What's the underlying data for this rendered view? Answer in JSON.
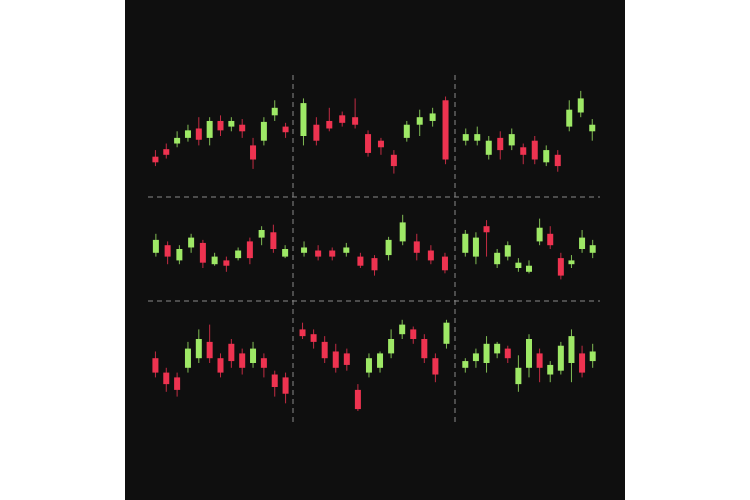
{
  "chart_data": [
    {
      "type": "candlestick",
      "up_color": "#9ee866",
      "down_color": "#ee3350",
      "ylim": [
        0,
        100
      ],
      "open": [
        28,
        36,
        42,
        48,
        58,
        48,
        66,
        60,
        62,
        40,
        45,
        72,
        60
      ],
      "close": [
        22,
        30,
        48,
        56,
        46,
        66,
        56,
        66,
        55,
        25,
        65,
        80,
        54
      ],
      "high": [
        35,
        42,
        55,
        62,
        70,
        70,
        72,
        70,
        68,
        48,
        70,
        88,
        64
      ],
      "low": [
        18,
        26,
        38,
        44,
        40,
        40,
        50,
        55,
        48,
        15,
        40,
        66,
        48
      ]
    },
    {
      "type": "candlestick",
      "up_color": "#9ee866",
      "down_color": "#ee3350",
      "ylim": [
        0,
        100
      ],
      "open": [
        50,
        62,
        66,
        72,
        70,
        52,
        45,
        30,
        48,
        62,
        66,
        88
      ],
      "close": [
        85,
        45,
        58,
        64,
        62,
        32,
        38,
        18,
        62,
        70,
        74,
        25
      ],
      "high": [
        90,
        70,
        80,
        76,
        90,
        56,
        48,
        35,
        66,
        78,
        80,
        92
      ],
      "low": [
        40,
        40,
        55,
        60,
        58,
        28,
        30,
        10,
        44,
        50,
        60,
        20
      ]
    },
    {
      "type": "candlestick",
      "up_color": "#9ee866",
      "down_color": "#ee3350",
      "ylim": [
        0,
        100
      ],
      "open": [
        45,
        45,
        30,
        48,
        40,
        38,
        45,
        22,
        30,
        60,
        75,
        55
      ],
      "close": [
        52,
        52,
        45,
        35,
        52,
        30,
        25,
        35,
        18,
        78,
        90,
        62
      ],
      "high": [
        58,
        60,
        50,
        55,
        58,
        42,
        50,
        40,
        35,
        88,
        98,
        68
      ],
      "low": [
        40,
        40,
        25,
        25,
        35,
        20,
        20,
        18,
        12,
        55,
        70,
        45
      ]
    },
    {
      "type": "candlestick",
      "up_color": "#9ee866",
      "down_color": "#ee3350",
      "ylim": [
        0,
        100
      ],
      "open": [
        45,
        55,
        35,
        52,
        58,
        30,
        35,
        38,
        60,
        65,
        72,
        40
      ],
      "close": [
        62,
        40,
        50,
        65,
        32,
        40,
        28,
        48,
        38,
        75,
        50,
        50
      ],
      "high": [
        70,
        60,
        55,
        70,
        62,
        45,
        40,
        52,
        65,
        80,
        82,
        55
      ],
      "low": [
        40,
        30,
        30,
        45,
        25,
        28,
        20,
        35,
        30,
        55,
        45,
        38
      ]
    },
    {
      "type": "candlestick",
      "up_color": "#9ee866",
      "down_color": "#ee3350",
      "ylim": [
        0,
        100
      ],
      "open": [
        45,
        48,
        48,
        45,
        40,
        38,
        42,
        60,
        60,
        48,
        40
      ],
      "close": [
        52,
        40,
        40,
        52,
        28,
        22,
        62,
        85,
        45,
        35,
        22
      ],
      "high": [
        60,
        55,
        52,
        58,
        45,
        42,
        66,
        95,
        70,
        55,
        45
      ],
      "low": [
        40,
        35,
        35,
        40,
        25,
        15,
        35,
        55,
        35,
        30,
        18
      ]
    },
    {
      "type": "candlestick",
      "up_color": "#9ee866",
      "down_color": "#ee3350",
      "ylim": [
        0,
        100
      ],
      "open": [
        45,
        40,
        80,
        30,
        40,
        25,
        20,
        60,
        70,
        38,
        30,
        50,
        45
      ],
      "close": [
        70,
        65,
        72,
        45,
        55,
        32,
        28,
        78,
        55,
        15,
        35,
        65,
        55
      ],
      "high": [
        75,
        72,
        88,
        50,
        60,
        38,
        35,
        90,
        80,
        45,
        42,
        75,
        62
      ],
      "low": [
        40,
        30,
        40,
        25,
        35,
        20,
        18,
        55,
        50,
        10,
        25,
        45,
        38
      ]
    },
    {
      "type": "candlestick",
      "up_color": "#9ee866",
      "down_color": "#ee3350",
      "ylim": [
        0,
        100
      ],
      "open": [
        55,
        40,
        35,
        45,
        55,
        72,
        55,
        70,
        60,
        50,
        55,
        38,
        35
      ],
      "close": [
        40,
        28,
        22,
        65,
        75,
        55,
        40,
        52,
        45,
        65,
        45,
        25,
        18
      ],
      "high": [
        62,
        45,
        40,
        72,
        85,
        90,
        60,
        75,
        65,
        72,
        60,
        42,
        40
      ],
      "low": [
        35,
        20,
        15,
        40,
        50,
        50,
        35,
        45,
        38,
        45,
        35,
        15,
        8
      ]
    },
    {
      "type": "candlestick",
      "up_color": "#9ee866",
      "down_color": "#ee3350",
      "ylim": [
        0,
        100
      ],
      "open": [
        85,
        80,
        72,
        62,
        60,
        22,
        40,
        45,
        60,
        80,
        85,
        75,
        55,
        70
      ],
      "close": [
        78,
        72,
        55,
        45,
        48,
        2,
        55,
        60,
        75,
        90,
        75,
        55,
        38,
        92
      ],
      "high": [
        92,
        85,
        78,
        70,
        65,
        28,
        60,
        62,
        85,
        95,
        88,
        80,
        60,
        95
      ],
      "low": [
        75,
        65,
        50,
        40,
        42,
        0,
        35,
        40,
        55,
        75,
        70,
        50,
        30,
        65
      ]
    },
    {
      "type": "candlestick",
      "up_color": "#9ee866",
      "down_color": "#ee3350",
      "ylim": [
        0,
        100
      ],
      "open": [
        45,
        52,
        50,
        60,
        65,
        28,
        45,
        60,
        38,
        42,
        50,
        60,
        52
      ],
      "close": [
        52,
        60,
        70,
        70,
        55,
        45,
        75,
        45,
        48,
        68,
        78,
        40,
        62
      ],
      "high": [
        55,
        65,
        78,
        72,
        68,
        58,
        80,
        65,
        52,
        72,
        85,
        68,
        70
      ],
      "low": [
        40,
        45,
        40,
        55,
        50,
        20,
        35,
        30,
        30,
        38,
        30,
        35,
        45
      ]
    }
  ]
}
